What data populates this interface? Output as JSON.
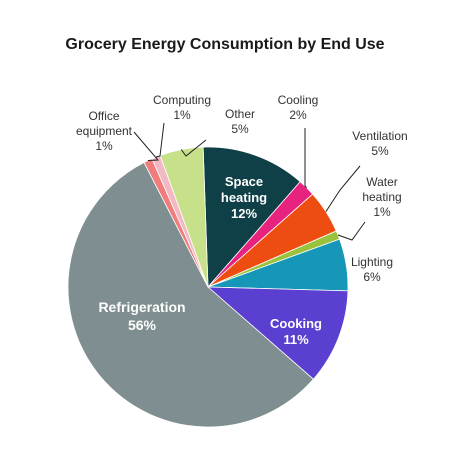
{
  "chart_data": {
    "type": "pie",
    "title": "Grocery Energy Consumption by End Use",
    "slices": [
      {
        "name": "Space heating",
        "label_lines": [
          "Space",
          "heating",
          "12%"
        ],
        "value": 12,
        "color": "#0f3f47",
        "label_inside": true
      },
      {
        "name": "Cooling",
        "label_lines": [
          "Cooling",
          "2%"
        ],
        "value": 2,
        "color": "#e8237f",
        "label_inside": false
      },
      {
        "name": "Ventilation",
        "label_lines": [
          "Ventilation",
          "5%"
        ],
        "value": 5,
        "color": "#ee4d12",
        "label_inside": false
      },
      {
        "name": "Water heating",
        "label_lines": [
          "Water",
          "heating",
          "1%"
        ],
        "value": 1,
        "color": "#9ac23c",
        "label_inside": false
      },
      {
        "name": "Lighting",
        "label_lines": [
          "Lighting",
          "6%"
        ],
        "value": 6,
        "color": "#1697b8",
        "label_inside": false
      },
      {
        "name": "Cooking",
        "label_lines": [
          "Cooking",
          "11%"
        ],
        "value": 11,
        "color": "#5a3fd0",
        "label_inside": true
      },
      {
        "name": "Refrigeration",
        "label_lines": [
          "Refrigeration",
          "56%"
        ],
        "value": 56,
        "color": "#7f8e90",
        "label_inside": true
      },
      {
        "name": "Office equipment",
        "label_lines": [
          "Office",
          "equipment",
          "1%"
        ],
        "value": 1,
        "color": "#f07c7c",
        "label_inside": false
      },
      {
        "name": "Computing",
        "label_lines": [
          "Computing",
          "1%"
        ],
        "value": 1,
        "color": "#f2b9c4",
        "label_inside": false
      },
      {
        "name": "Other",
        "label_lines": [
          "Other",
          "5%"
        ],
        "value": 5,
        "color": "#c7e08a",
        "label_inside": false
      }
    ]
  }
}
